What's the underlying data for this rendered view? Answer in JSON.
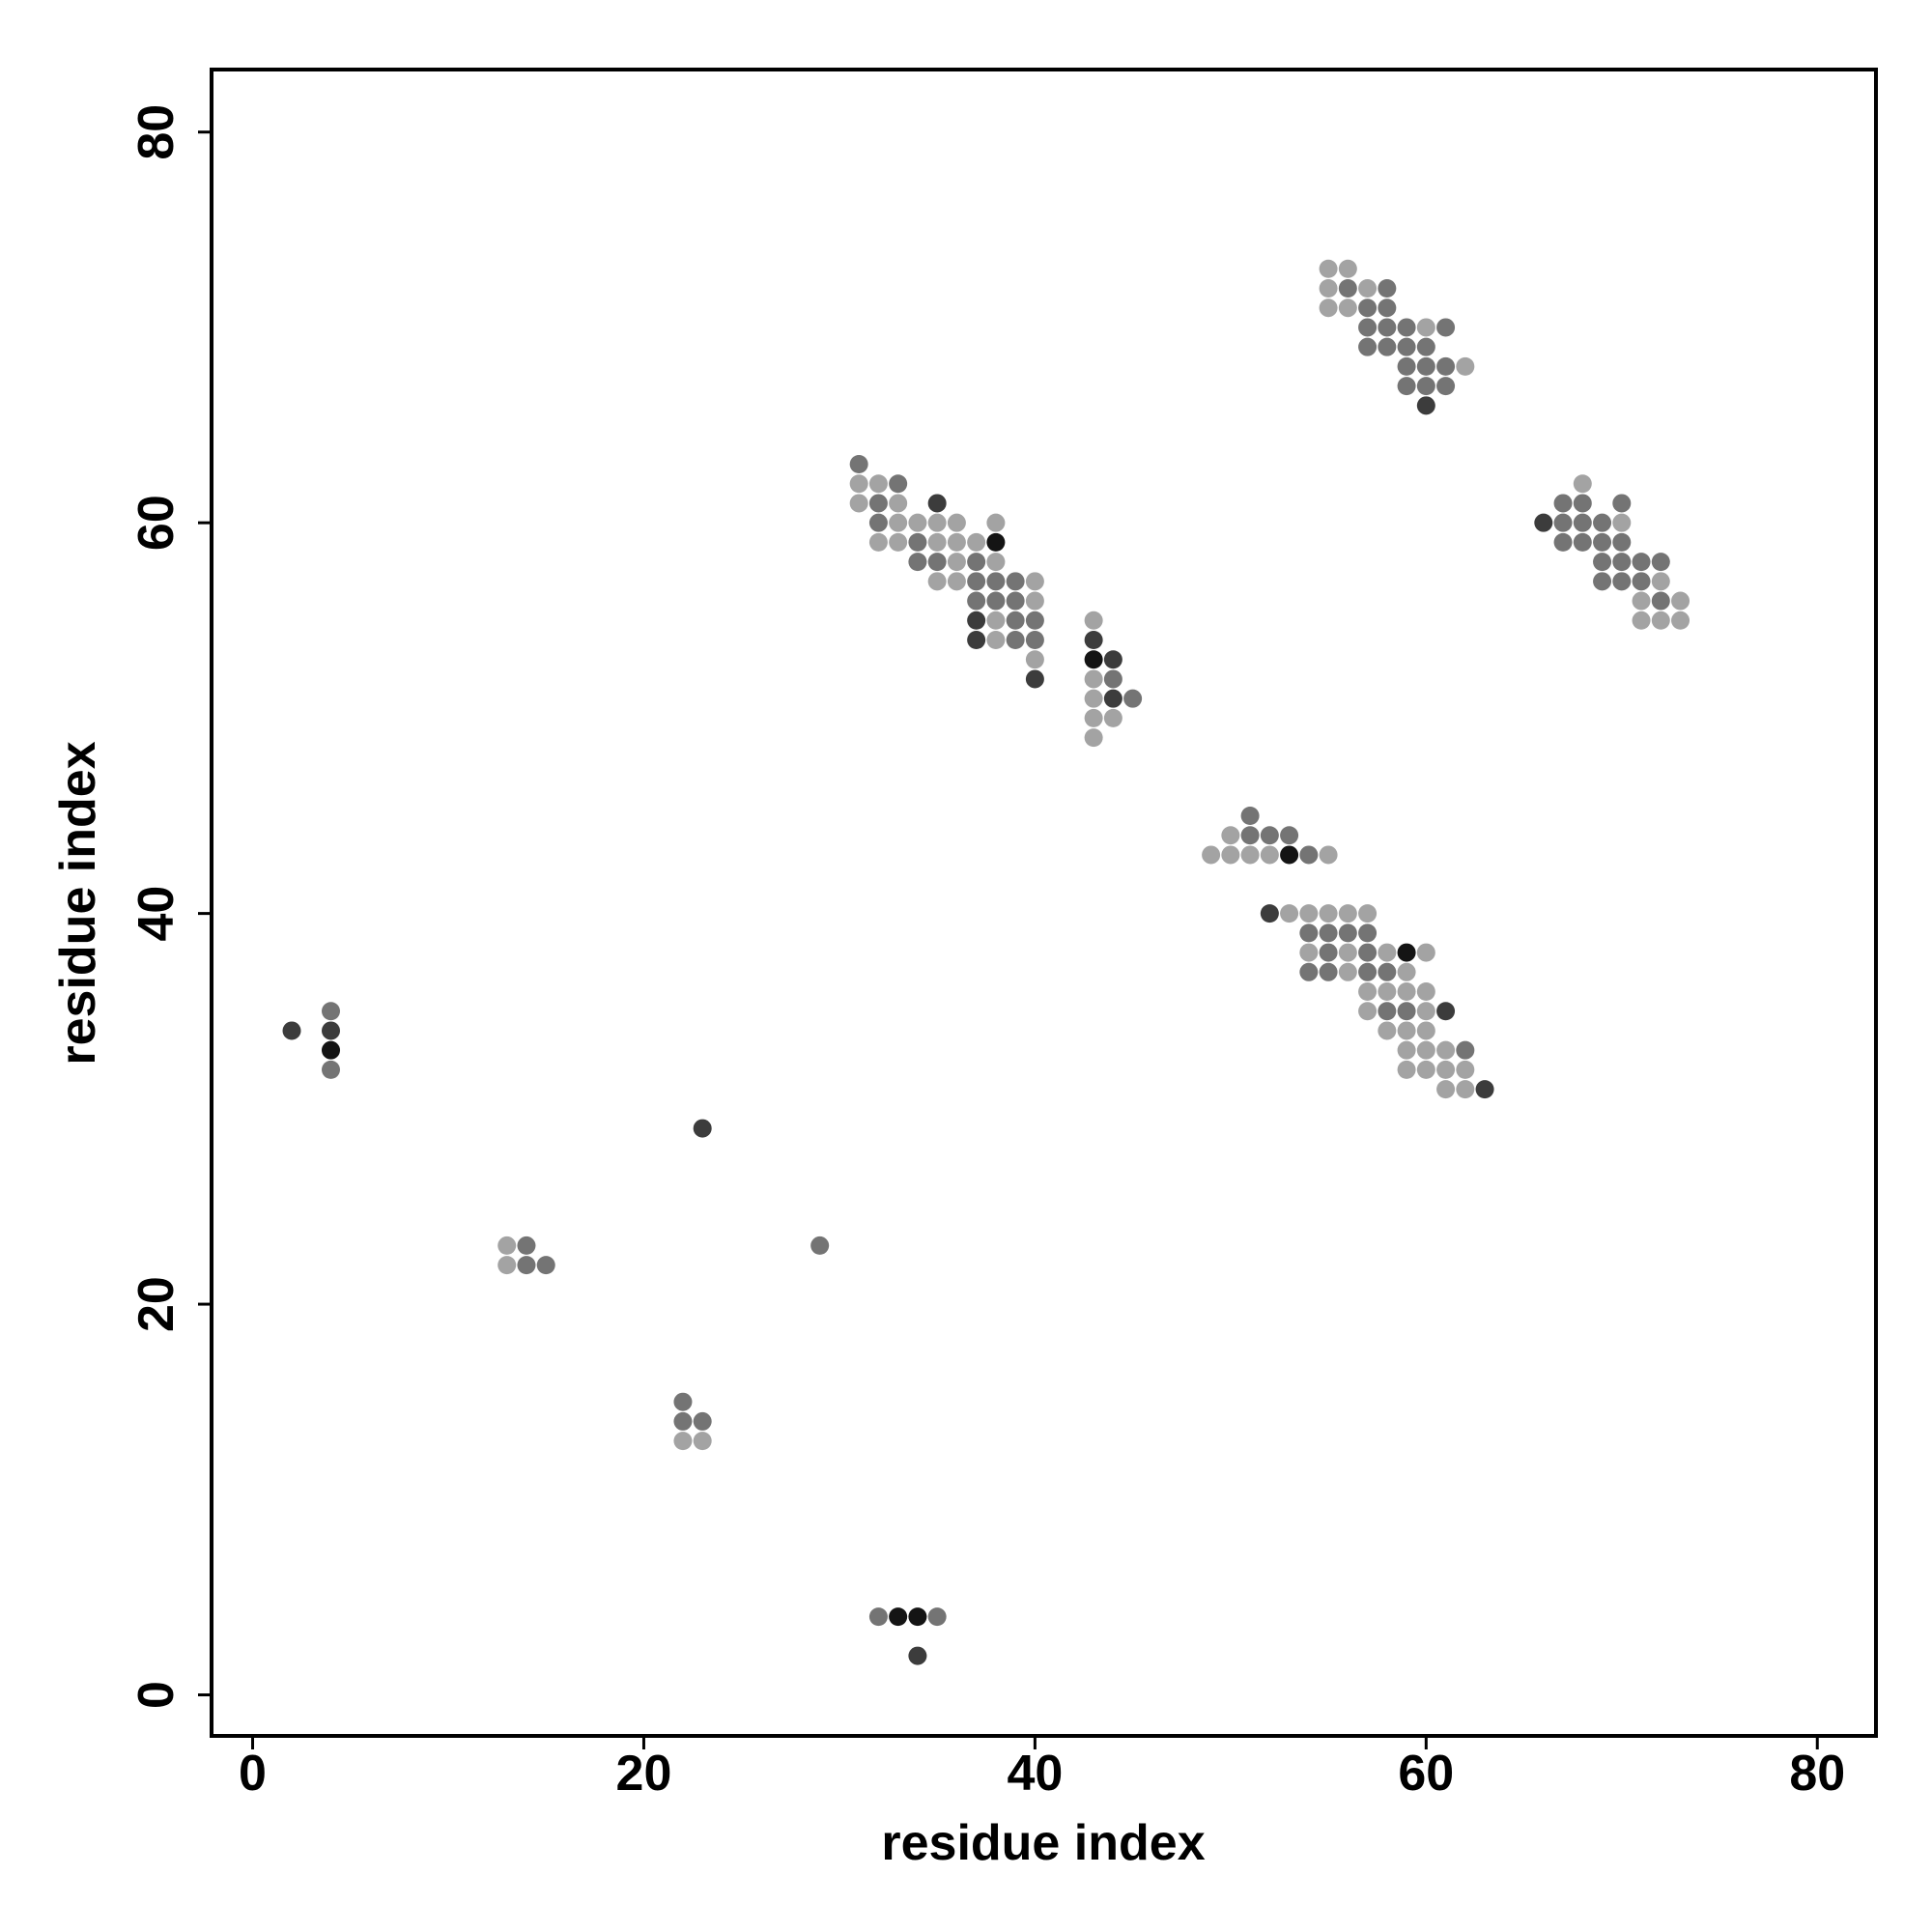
{
  "chart_data": {
    "type": "scatter",
    "xlabel": "residue index",
    "ylabel": "residue index",
    "xlim": [
      -2.1,
      83.0
    ],
    "ylim": [
      -2.1,
      83.2
    ],
    "xticks": [
      0,
      20,
      40,
      60,
      80
    ],
    "yticks": [
      0,
      20,
      40,
      60,
      80
    ],
    "series": [
      {
        "color": "#a3a3a3",
        "x": [
          22,
          23,
          13,
          13,
          31,
          32,
          31,
          33,
          33,
          34,
          35,
          36,
          38,
          32,
          33,
          35,
          36,
          37,
          36,
          38,
          35,
          36,
          40,
          40,
          38,
          38,
          40,
          43,
          43,
          43,
          43,
          44,
          43,
          55,
          56,
          55,
          57,
          55,
          56,
          60,
          62,
          68,
          70,
          72,
          71,
          73,
          71,
          72,
          73,
          50,
          49,
          50,
          51,
          52,
          55,
          53,
          54,
          55,
          56,
          57,
          54,
          56,
          58,
          60,
          56,
          59,
          57,
          58,
          59,
          60,
          57,
          60,
          58,
          59,
          60,
          59,
          60,
          61,
          59,
          60,
          61,
          62,
          61,
          62
        ],
        "y": [
          13,
          13,
          23,
          22,
          62,
          62,
          61,
          61,
          60,
          60,
          60,
          60,
          60,
          59,
          59,
          59,
          59,
          59,
          58,
          58,
          57,
          57,
          57,
          56,
          55,
          54,
          53,
          55,
          52,
          51,
          50,
          50,
          49,
          73,
          73,
          72,
          72,
          71,
          71,
          70,
          68,
          62,
          60,
          57,
          56,
          56,
          55,
          55,
          55,
          44,
          43,
          43,
          43,
          43,
          43,
          40,
          40,
          40,
          40,
          40,
          38,
          38,
          38,
          38,
          37,
          37,
          36,
          36,
          36,
          36,
          35,
          35,
          34,
          34,
          34,
          33,
          33,
          33,
          32,
          32,
          32,
          32,
          31,
          31
        ]
      },
      {
        "color": "#747474",
        "x": [
          32,
          35,
          22,
          22,
          23,
          29,
          14,
          14,
          15,
          4,
          4,
          31,
          33,
          32,
          32,
          34,
          34,
          35,
          37,
          37,
          38,
          39,
          37,
          38,
          39,
          39,
          40,
          39,
          40,
          44,
          45,
          56,
          58,
          57,
          58,
          57,
          58,
          59,
          61,
          57,
          58,
          59,
          60,
          59,
          60,
          61,
          59,
          60,
          61,
          67,
          68,
          70,
          67,
          68,
          69,
          67,
          68,
          69,
          70,
          69,
          70,
          71,
          72,
          69,
          70,
          71,
          72,
          51,
          51,
          52,
          53,
          54,
          54,
          55,
          56,
          57,
          55,
          57,
          54,
          55,
          57,
          58,
          58,
          59,
          62
        ],
        "y": [
          4,
          4,
          15,
          14,
          14,
          23,
          23,
          22,
          22,
          35,
          32,
          63,
          62,
          61,
          60,
          59,
          58,
          58,
          58,
          57,
          57,
          57,
          56,
          56,
          56,
          55,
          55,
          54,
          54,
          52,
          51,
          72,
          72,
          71,
          71,
          70,
          70,
          70,
          70,
          69,
          69,
          69,
          69,
          68,
          68,
          68,
          67,
          67,
          67,
          61,
          61,
          61,
          60,
          60,
          60,
          59,
          59,
          59,
          59,
          58,
          58,
          58,
          58,
          57,
          57,
          57,
          56,
          45,
          44,
          44,
          44,
          43,
          39,
          39,
          39,
          39,
          38,
          38,
          37,
          37,
          37,
          37,
          35,
          35,
          33
        ]
      },
      {
        "color": "#3c3c3c",
        "x": [
          34,
          23,
          2,
          4,
          35,
          37,
          37,
          40,
          43,
          44,
          44,
          60,
          66,
          52,
          61,
          63
        ],
        "y": [
          2,
          29,
          34,
          34,
          61,
          55,
          54,
          52,
          54,
          53,
          51,
          66,
          60,
          40,
          35,
          31
        ]
      },
      {
        "color": "#141414",
        "x": [
          33,
          34,
          4,
          38,
          43,
          53,
          59
        ],
        "y": [
          4,
          4,
          33,
          59,
          53,
          43,
          38
        ]
      }
    ]
  }
}
